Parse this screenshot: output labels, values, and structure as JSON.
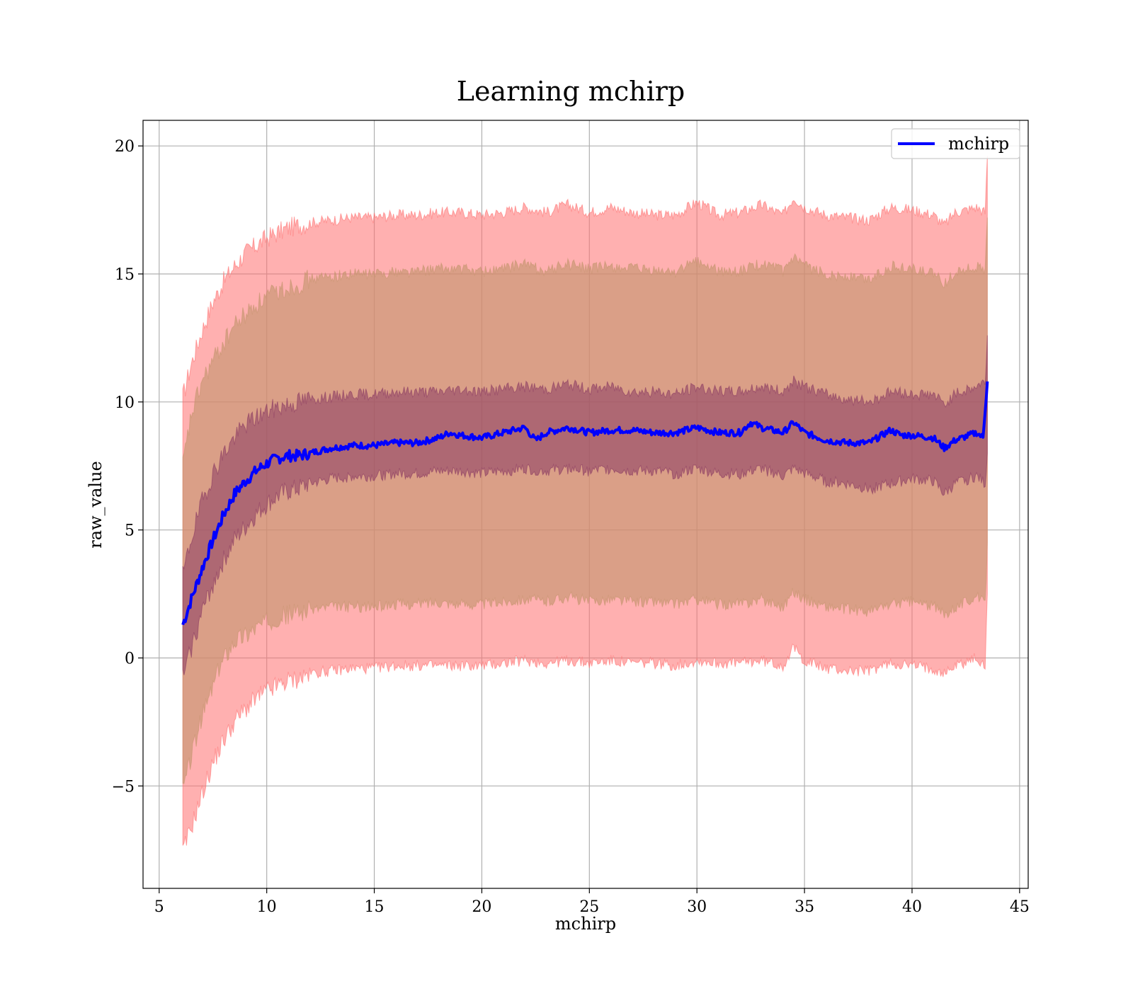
{
  "chart_data": {
    "type": "line",
    "title": "Learning mchirp",
    "xlabel": "mchirp",
    "ylabel": "raw_value",
    "xlim": [
      4.25,
      45.4
    ],
    "ylim": [
      -9.0,
      21.0
    ],
    "xticks": [
      5,
      10,
      15,
      20,
      25,
      30,
      35,
      40,
      45
    ],
    "xtick_labels": [
      "5",
      "10",
      "15",
      "20",
      "25",
      "30",
      "35",
      "40",
      "45"
    ],
    "yticks": [
      -5,
      0,
      5,
      10,
      15,
      20
    ],
    "ytick_labels": [
      "−5",
      "0",
      "5",
      "10",
      "15",
      "20"
    ],
    "grid": true,
    "legend_placement": "top-right",
    "series": [
      {
        "name": "mchirp",
        "color": "#0000ff",
        "x": [
          6.1,
          6.5,
          7.0,
          7.5,
          8.0,
          8.5,
          9.0,
          9.5,
          10.0,
          10.5,
          11.0,
          11.5,
          12.0,
          13.0,
          14.0,
          15.0,
          16.0,
          17.0,
          18.0,
          18.5,
          19.0,
          20.0,
          21.0,
          22.0,
          22.5,
          23.0,
          24.0,
          25.0,
          26.0,
          27.0,
          28.0,
          29.0,
          30.0,
          31.0,
          32.0,
          32.5,
          33.0,
          34.0,
          34.5,
          35.0,
          36.0,
          37.0,
          38.0,
          39.0,
          39.5,
          40.0,
          41.0,
          41.5,
          42.0,
          43.0,
          43.3,
          43.5
        ],
        "y": [
          1.3,
          2.3,
          3.5,
          4.6,
          5.6,
          6.4,
          6.9,
          7.3,
          7.6,
          7.8,
          7.9,
          7.9,
          8.0,
          8.2,
          8.3,
          8.3,
          8.4,
          8.4,
          8.6,
          8.8,
          8.7,
          8.6,
          8.8,
          9.0,
          8.5,
          8.8,
          9.0,
          8.8,
          8.9,
          8.9,
          8.8,
          8.8,
          9.0,
          8.8,
          8.8,
          9.2,
          9.0,
          8.8,
          9.2,
          8.8,
          8.5,
          8.4,
          8.4,
          8.9,
          8.7,
          8.7,
          8.6,
          8.2,
          8.5,
          8.8,
          8.6,
          10.8
        ]
      },
      {
        "name": "",
        "role": "band-1sigma",
        "color": "#8b3a62",
        "x": [
          6.1,
          6.5,
          7.0,
          7.5,
          8.0,
          8.5,
          9.0,
          9.5,
          10.0,
          10.5,
          11.0,
          11.5,
          12.0,
          13.0,
          14.0,
          15.0,
          16.0,
          17.0,
          18.0,
          19.0,
          20.0,
          21.0,
          22.0,
          23.0,
          24.0,
          25.0,
          26.0,
          27.0,
          28.0,
          29.0,
          30.0,
          31.0,
          32.0,
          33.0,
          34.0,
          34.5,
          35.0,
          36.0,
          37.0,
          38.0,
          39.0,
          40.0,
          41.0,
          41.5,
          42.0,
          43.0,
          43.4,
          43.5
        ],
        "lower": [
          -0.8,
          0.4,
          1.8,
          2.9,
          3.8,
          4.6,
          5.1,
          5.6,
          6.0,
          6.3,
          6.5,
          6.6,
          6.8,
          7.0,
          7.1,
          7.1,
          7.2,
          7.2,
          7.3,
          7.3,
          7.2,
          7.3,
          7.4,
          7.3,
          7.4,
          7.3,
          7.4,
          7.3,
          7.3,
          7.2,
          7.4,
          7.2,
          7.2,
          7.4,
          7.1,
          7.4,
          7.2,
          6.9,
          6.8,
          6.6,
          6.8,
          7.0,
          6.9,
          6.4,
          6.8,
          7.1,
          6.8,
          8.0
        ],
        "upper": [
          3.2,
          4.7,
          6.1,
          7.2,
          8.0,
          8.6,
          9.1,
          9.4,
          9.6,
          9.8,
          9.9,
          10.0,
          10.1,
          10.2,
          10.3,
          10.3,
          10.4,
          10.4,
          10.4,
          10.5,
          10.4,
          10.5,
          10.6,
          10.5,
          10.7,
          10.5,
          10.6,
          10.4,
          10.4,
          10.3,
          10.6,
          10.4,
          10.4,
          10.6,
          10.4,
          10.8,
          10.6,
          10.3,
          10.1,
          10.0,
          10.4,
          10.3,
          10.3,
          9.9,
          10.3,
          10.6,
          10.8,
          12.6
        ]
      },
      {
        "name": "",
        "role": "band-2sigma",
        "color": "#c4956e",
        "x": [
          6.1,
          6.5,
          7.0,
          7.5,
          8.0,
          8.5,
          9.0,
          9.5,
          10.0,
          10.5,
          11.0,
          11.5,
          12.0,
          13.0,
          14.0,
          15.0,
          16.0,
          17.0,
          18.0,
          19.0,
          20.0,
          21.0,
          22.0,
          23.0,
          24.0,
          25.0,
          26.0,
          27.0,
          28.0,
          29.0,
          30.0,
          31.0,
          32.0,
          33.0,
          34.0,
          34.5,
          35.0,
          36.0,
          37.0,
          38.0,
          39.0,
          40.0,
          41.0,
          41.5,
          42.0,
          43.0,
          43.4,
          43.5
        ],
        "lower": [
          -5.2,
          -3.8,
          -2.3,
          -1.1,
          0.0,
          0.7,
          0.9,
          1.2,
          1.4,
          1.6,
          1.7,
          1.8,
          1.9,
          2.0,
          2.0,
          2.0,
          2.1,
          2.1,
          2.2,
          2.1,
          2.1,
          2.2,
          2.3,
          2.2,
          2.4,
          2.2,
          2.3,
          2.2,
          2.2,
          2.1,
          2.3,
          2.1,
          2.1,
          2.3,
          2.0,
          2.6,
          2.3,
          2.0,
          1.9,
          1.8,
          2.1,
          2.2,
          2.0,
          1.7,
          2.0,
          2.4,
          2.1,
          4.5
        ],
        "upper": [
          7.5,
          9.5,
          10.8,
          11.6,
          12.3,
          13.0,
          13.4,
          13.8,
          14.1,
          14.3,
          14.5,
          14.6,
          14.8,
          14.9,
          15.0,
          15.0,
          15.1,
          15.1,
          15.2,
          15.2,
          15.1,
          15.2,
          15.4,
          15.1,
          15.4,
          15.2,
          15.3,
          15.2,
          15.1,
          15.1,
          15.5,
          15.1,
          15.1,
          15.4,
          15.1,
          15.6,
          15.3,
          15.0,
          14.9,
          14.8,
          15.3,
          15.2,
          15.0,
          14.6,
          15.1,
          15.3,
          15.1,
          17.2
        ]
      },
      {
        "name": "",
        "role": "band-3sigma",
        "color": "#ff6f6f",
        "x": [
          6.1,
          6.5,
          7.0,
          7.5,
          8.0,
          8.5,
          9.0,
          9.5,
          10.0,
          10.5,
          11.0,
          11.5,
          12.0,
          13.0,
          14.0,
          15.0,
          16.0,
          17.0,
          18.0,
          19.0,
          20.0,
          21.0,
          22.0,
          23.0,
          24.0,
          25.0,
          26.0,
          27.0,
          28.0,
          29.0,
          30.0,
          31.0,
          32.0,
          33.0,
          34.0,
          34.5,
          35.0,
          36.0,
          37.0,
          38.0,
          39.0,
          40.0,
          41.0,
          41.5,
          42.0,
          43.0,
          43.4,
          43.5
        ],
        "lower": [
          -7.6,
          -6.6,
          -5.3,
          -4.1,
          -3.2,
          -2.5,
          -2.0,
          -1.6,
          -1.3,
          -1.1,
          -0.9,
          -0.8,
          -0.6,
          -0.5,
          -0.4,
          -0.4,
          -0.3,
          -0.3,
          -0.3,
          -0.3,
          -0.3,
          -0.2,
          -0.1,
          -0.2,
          -0.1,
          -0.2,
          -0.1,
          -0.2,
          -0.2,
          -0.3,
          -0.1,
          -0.2,
          -0.2,
          -0.1,
          -0.3,
          0.4,
          -0.1,
          -0.4,
          -0.5,
          -0.5,
          -0.2,
          -0.3,
          -0.4,
          -0.6,
          -0.3,
          0.0,
          -0.4,
          2.5
        ],
        "upper": [
          10.2,
          11.5,
          12.8,
          13.9,
          14.7,
          15.3,
          15.8,
          16.1,
          16.4,
          16.6,
          16.8,
          16.9,
          17.0,
          17.1,
          17.2,
          17.2,
          17.3,
          17.3,
          17.4,
          17.4,
          17.3,
          17.4,
          17.6,
          17.4,
          17.7,
          17.4,
          17.6,
          17.4,
          17.3,
          17.3,
          17.8,
          17.3,
          17.4,
          17.7,
          17.3,
          18.0,
          17.6,
          17.3,
          17.2,
          17.1,
          17.6,
          17.5,
          17.3,
          16.9,
          17.4,
          17.6,
          17.4,
          19.6
        ]
      }
    ]
  }
}
